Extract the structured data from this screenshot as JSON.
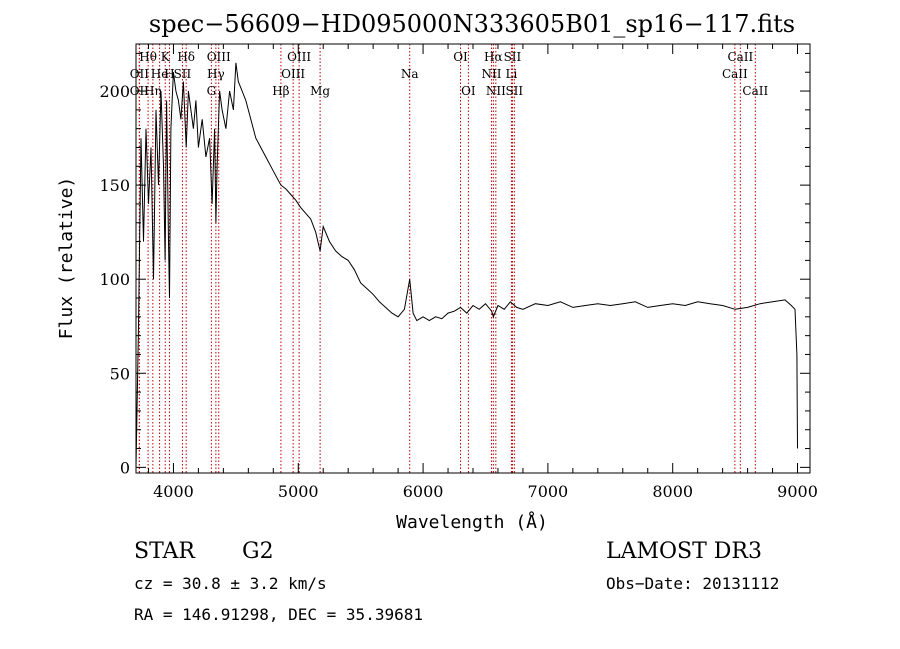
{
  "chart_data": {
    "type": "line",
    "title": "spec−56609−HD095000N333605B01_sp16−117.fits",
    "xlabel": "Wavelength (Å)",
    "ylabel": "Flux (relative)",
    "xlim": [
      3700,
      9100
    ],
    "ylim": [
      -3,
      225
    ],
    "x_ticks": [
      4000,
      5000,
      6000,
      7000,
      8000,
      9000
    ],
    "x_tick_labels": [
      "4000",
      "5000",
      "6000",
      "7000",
      "8000",
      "9000"
    ],
    "y_ticks": [
      0,
      50,
      100,
      150,
      200
    ],
    "y_tick_labels": [
      "0",
      "50",
      "100",
      "150",
      "200"
    ],
    "series": [
      {
        "name": "flux",
        "x": [
          3700,
          3720,
          3740,
          3760,
          3780,
          3800,
          3820,
          3840,
          3860,
          3880,
          3900,
          3920,
          3933,
          3945,
          3960,
          3968,
          3980,
          4000,
          4020,
          4040,
          4060,
          4080,
          4102,
          4120,
          4140,
          4160,
          4180,
          4200,
          4230,
          4260,
          4290,
          4310,
          4330,
          4340,
          4350,
          4370,
          4390,
          4420,
          4450,
          4480,
          4500,
          4520,
          4550,
          4580,
          4620,
          4660,
          4700,
          4740,
          4780,
          4820,
          4861,
          4900,
          4940,
          4980,
          5020,
          5060,
          5100,
          5140,
          5175,
          5200,
          5250,
          5300,
          5350,
          5400,
          5450,
          5500,
          5550,
          5600,
          5650,
          5700,
          5750,
          5800,
          5850,
          5893,
          5920,
          5950,
          6000,
          6050,
          6100,
          6150,
          6200,
          6250,
          6300,
          6350,
          6400,
          6450,
          6500,
          6550,
          6563,
          6600,
          6650,
          6700,
          6750,
          6800,
          6900,
          7000,
          7100,
          7200,
          7300,
          7400,
          7500,
          7600,
          7700,
          7800,
          7900,
          8000,
          8100,
          8200,
          8300,
          8400,
          8500,
          8600,
          8700,
          8800,
          8900,
          8950,
          8980,
          8995,
          9000
        ],
        "y": [
          0,
          75,
          175,
          120,
          180,
          140,
          170,
          100,
          190,
          150,
          200,
          160,
          110,
          195,
          120,
          90,
          180,
          210,
          200,
          195,
          185,
          205,
          170,
          200,
          190,
          180,
          195,
          170,
          185,
          165,
          175,
          140,
          180,
          130,
          160,
          200,
          190,
          180,
          200,
          190,
          215,
          205,
          200,
          195,
          185,
          175,
          170,
          165,
          160,
          155,
          150,
          148,
          145,
          142,
          138,
          135,
          132,
          125,
          115,
          128,
          120,
          115,
          112,
          110,
          105,
          98,
          95,
          92,
          88,
          85,
          82,
          80,
          84,
          100,
          82,
          78,
          80,
          78,
          80,
          79,
          82,
          83,
          85,
          82,
          86,
          84,
          87,
          83,
          80,
          86,
          84,
          88,
          85,
          84,
          87,
          86,
          88,
          85,
          86,
          87,
          86,
          87,
          88,
          85,
          86,
          87,
          86,
          88,
          87,
          86,
          84,
          85,
          87,
          88,
          89,
          86,
          84,
          60,
          10
        ]
      }
    ],
    "lines": [
      {
        "name": "Hθ",
        "x": 3797,
        "row": 0
      },
      {
        "name": "OII",
        "x": 3727,
        "row": 1
      },
      {
        "name": "OII",
        "x": 3727,
        "row": 2
      },
      {
        "name": "He",
        "x": 3889,
        "row": 1
      },
      {
        "name": "Hη",
        "x": 3835,
        "row": 2
      },
      {
        "name": "K",
        "x": 3934,
        "row": 0
      },
      {
        "name": "H",
        "x": 3968,
        "row": 1
      },
      {
        "name": "Hδ",
        "x": 4102,
        "row": 0
      },
      {
        "name": "SII",
        "x": 4072,
        "row": 1
      },
      {
        "name": "OIII",
        "x": 4363,
        "row": 0
      },
      {
        "name": "Hγ",
        "x": 4340,
        "row": 1
      },
      {
        "name": "G",
        "x": 4304,
        "row": 2
      },
      {
        "name": "Hβ",
        "x": 4861,
        "row": 2
      },
      {
        "name": "OIII",
        "x": 4959,
        "row": 1
      },
      {
        "name": "OIII",
        "x": 5007,
        "row": 0
      },
      {
        "name": "Mg",
        "x": 5175,
        "row": 2
      },
      {
        "name": "Na",
        "x": 5893,
        "row": 1
      },
      {
        "name": "OI",
        "x": 6300,
        "row": 0
      },
      {
        "name": "OI",
        "x": 6363,
        "row": 2
      },
      {
        "name": "Hα",
        "x": 6563,
        "row": 0
      },
      {
        "name": "NII",
        "x": 6548,
        "row": 1
      },
      {
        "name": "NII",
        "x": 6583,
        "row": 2
      },
      {
        "name": "SII",
        "x": 6716,
        "row": 0
      },
      {
        "name": "Li",
        "x": 6708,
        "row": 1
      },
      {
        "name": "SII",
        "x": 6731,
        "row": 2
      },
      {
        "name": "CaII",
        "x": 8542,
        "row": 0
      },
      {
        "name": "CaII",
        "x": 8498,
        "row": 1
      },
      {
        "name": "CaII",
        "x": 8662,
        "row": 2
      }
    ]
  },
  "info": {
    "object_class": "STAR",
    "subclass": "G2",
    "survey": "LAMOST DR3",
    "cz": "cz = 30.8 ± 3.2 km/s",
    "obs_date": "Obs−Date: 20131112",
    "coords": "RA = 146.91298, DEC =  35.39681"
  }
}
